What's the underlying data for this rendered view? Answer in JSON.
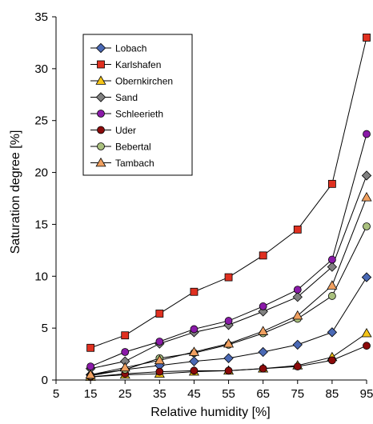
{
  "chart_data": {
    "type": "line",
    "xlabel": "Relative humidity [%]",
    "ylabel": "Saturation degree [%]",
    "xlim": [
      5,
      95
    ],
    "ylim": [
      0,
      35
    ],
    "x_ticks": [
      5,
      15,
      25,
      35,
      45,
      55,
      65,
      75,
      85,
      95
    ],
    "y_ticks": [
      0,
      5,
      10,
      15,
      20,
      25,
      30,
      35
    ],
    "grid": false,
    "legend_position": "top-left",
    "x": [
      15,
      25,
      35,
      45,
      55,
      65,
      75,
      85,
      95
    ],
    "series": [
      {
        "name": "Lobach",
        "marker": "diamond",
        "color": "#4a69b5",
        "values": [
          0.5,
          1.0,
          1.4,
          1.8,
          2.1,
          2.7,
          3.4,
          4.6,
          9.9
        ]
      },
      {
        "name": "Karlshafen",
        "marker": "square",
        "color": "#e03020",
        "values": [
          3.1,
          4.3,
          6.4,
          8.5,
          9.9,
          12.0,
          14.5,
          18.9,
          33.0
        ]
      },
      {
        "name": "Obernkirchen",
        "marker": "triangle",
        "color": "#f5c518",
        "values": [
          0.3,
          0.5,
          0.6,
          0.8,
          0.9,
          1.1,
          1.4,
          2.2,
          4.5
        ]
      },
      {
        "name": "Sand",
        "marker": "diamond",
        "color": "#808080",
        "values": [
          1.1,
          1.8,
          3.5,
          4.6,
          5.3,
          6.6,
          8.0,
          10.9,
          19.7
        ]
      },
      {
        "name": "Schleerieth",
        "marker": "circle",
        "color": "#8a1aa8",
        "values": [
          1.3,
          2.7,
          3.7,
          4.9,
          5.7,
          7.1,
          8.7,
          11.6,
          23.7
        ]
      },
      {
        "name": "Uder",
        "marker": "circle",
        "color": "#8b0a0a",
        "values": [
          0.3,
          0.6,
          0.8,
          0.9,
          0.9,
          1.1,
          1.3,
          1.9,
          3.3
        ]
      },
      {
        "name": "Bebertal",
        "marker": "circle",
        "color": "#a9c07e",
        "values": [
          0.4,
          1.0,
          2.1,
          2.6,
          3.4,
          4.5,
          5.9,
          8.1,
          14.8
        ]
      },
      {
        "name": "Tambach",
        "marker": "triangle",
        "color": "#f0a060",
        "values": [
          0.5,
          1.2,
          1.9,
          2.7,
          3.5,
          4.7,
          6.2,
          9.1,
          17.6
        ]
      }
    ]
  }
}
